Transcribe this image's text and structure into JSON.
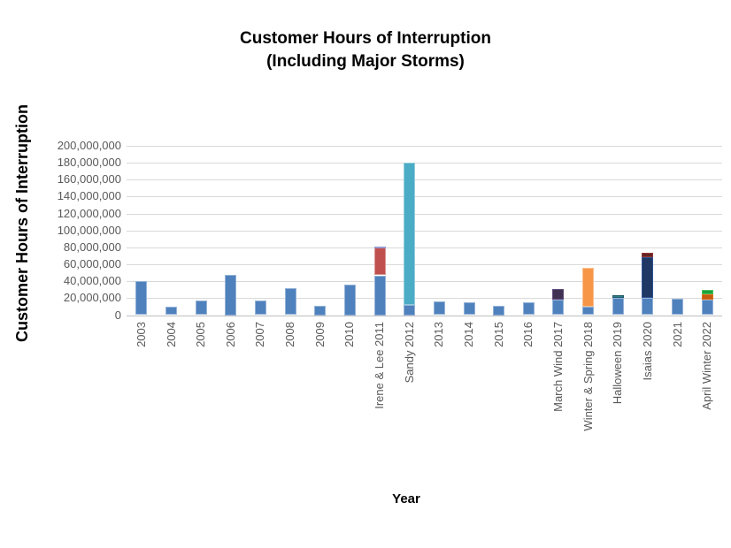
{
  "chart_data": {
    "type": "bar",
    "stacked": true,
    "title": "Customer Hours of Interruption",
    "subtitle": "(Including Major Storms)",
    "xlabel": "Year",
    "ylabel": "Customer Hours of Interruption",
    "ylim": [
      0,
      200000000
    ],
    "ytick_step": 20000000,
    "ytick_labels": [
      "0",
      "20,000,000",
      "40,000,000",
      "60,000,000",
      "80,000,000",
      "100,000,000",
      "120,000,000",
      "140,000,000",
      "160,000,000",
      "180,000,000",
      "200,000,000"
    ],
    "grid": true,
    "legend": "none",
    "palette": {
      "blue": {
        "fill": "#4F81BD",
        "border": "#95B3D7"
      },
      "teal": {
        "fill": "#4BACC6",
        "border": "#92CDDC"
      },
      "red": {
        "fill": "#C0504D",
        "border": "#D99694"
      },
      "lavender": {
        "fill": "#8080C0",
        "border": "#9999CC"
      },
      "purple": {
        "fill": "#403152",
        "border": "#604A7B"
      },
      "orange": {
        "fill": "#F79646",
        "border": "#FAC090"
      },
      "darkteal": {
        "fill": "#2D7C8A",
        "border": "#215968"
      },
      "navy": {
        "fill": "#1F3864",
        "border": "#2E5395"
      },
      "darkred": {
        "fill": "#632423",
        "border": "#953735"
      },
      "darkorange": {
        "fill": "#C55A11",
        "border": "#E3701A"
      },
      "green": {
        "fill": "#1FA139",
        "border": "#4BC45E"
      }
    },
    "bars": [
      {
        "label": "2003",
        "segments": [
          {
            "color": "blue",
            "value": 40000000
          }
        ]
      },
      {
        "label": "2004",
        "segments": [
          {
            "color": "blue",
            "value": 10000000
          }
        ]
      },
      {
        "label": "2005",
        "segments": [
          {
            "color": "blue",
            "value": 17000000
          }
        ]
      },
      {
        "label": "2006",
        "segments": [
          {
            "color": "blue",
            "value": 48000000
          }
        ]
      },
      {
        "label": "2007",
        "segments": [
          {
            "color": "blue",
            "value": 17000000
          }
        ]
      },
      {
        "label": "2008",
        "segments": [
          {
            "color": "blue",
            "value": 32000000
          }
        ]
      },
      {
        "label": "2009",
        "segments": [
          {
            "color": "blue",
            "value": 11000000
          }
        ]
      },
      {
        "label": "2010",
        "segments": [
          {
            "color": "blue",
            "value": 36000000
          }
        ]
      },
      {
        "label": "Irene & Lee 2011",
        "segments": [
          {
            "color": "blue",
            "value": 47000000
          },
          {
            "color": "red",
            "value": 33000000
          },
          {
            "color": "lavender",
            "value": 1000000
          }
        ]
      },
      {
        "label": "Sandy 2012",
        "segments": [
          {
            "color": "blue",
            "value": 12000000
          },
          {
            "color": "teal",
            "value": 168000000
          }
        ]
      },
      {
        "label": "2013",
        "segments": [
          {
            "color": "blue",
            "value": 16000000
          }
        ]
      },
      {
        "label": "2014",
        "segments": [
          {
            "color": "blue",
            "value": 15000000
          }
        ]
      },
      {
        "label": "2015",
        "segments": [
          {
            "color": "blue",
            "value": 11000000
          }
        ]
      },
      {
        "label": "2016",
        "segments": [
          {
            "color": "blue",
            "value": 15000000
          }
        ]
      },
      {
        "label": "March Wind 2017",
        "segments": [
          {
            "color": "blue",
            "value": 18000000
          },
          {
            "color": "purple",
            "value": 13000000
          }
        ]
      },
      {
        "label": "Winter & Spring  2018",
        "segments": [
          {
            "color": "blue",
            "value": 10000000
          },
          {
            "color": "orange",
            "value": 46000000
          }
        ]
      },
      {
        "label": "Halloween 2019",
        "segments": [
          {
            "color": "blue",
            "value": 20000000
          },
          {
            "color": "darkteal",
            "value": 4000000
          }
        ]
      },
      {
        "label": "Isaias 2020",
        "segments": [
          {
            "color": "blue",
            "value": 20000000
          },
          {
            "color": "navy",
            "value": 48000000
          },
          {
            "color": "darkred",
            "value": 6000000
          }
        ]
      },
      {
        "label": "2021",
        "segments": [
          {
            "color": "blue",
            "value": 19000000
          }
        ]
      },
      {
        "label": "April Winter 2022",
        "segments": [
          {
            "color": "blue",
            "value": 18000000
          },
          {
            "color": "darkorange",
            "value": 7000000
          },
          {
            "color": "green",
            "value": 5000000
          }
        ]
      }
    ]
  }
}
